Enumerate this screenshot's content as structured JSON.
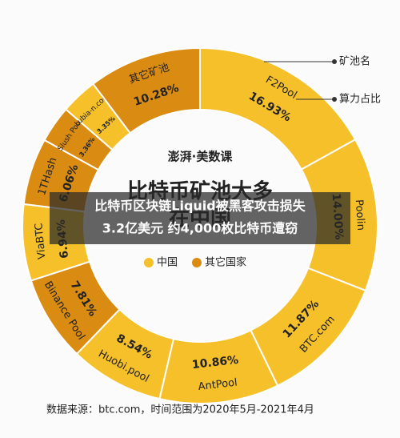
{
  "chart_data": {
    "type": "pie",
    "donut": true,
    "logo": "澎湃·美数课",
    "title": [
      "比特币矿池大多",
      "在中国"
    ],
    "categories": [
      "F2Pool",
      "Poolin",
      "BTC.com",
      "AntPool",
      "Huobi.pool",
      "Binance Pool",
      "ViaBTC",
      "1THash",
      "Slush Pool",
      "Lubia-n.com",
      "其它矿池"
    ],
    "values": [
      16.93,
      14.0,
      11.87,
      10.86,
      8.54,
      7.81,
      6.94,
      6.06,
      3.36,
      3.35,
      10.28
    ],
    "value_labels": [
      "16.93%",
      "14.00%",
      "11.87%",
      "10.86%",
      "8.54%",
      "7.81%",
      "6.94%",
      "6.06%",
      "3.36%",
      "3.35%",
      "10.28%"
    ],
    "colors": [
      "#f5c02a",
      "#f5c02a",
      "#f5c02a",
      "#f5c02a",
      "#f5c02a",
      "#d98b12",
      "#f5c02a",
      "#d98b12",
      "#d98b12",
      "#f5c02a",
      "#d98b12"
    ],
    "legend": [
      {
        "name": "中国",
        "color": "#f5c02a"
      },
      {
        "name": "其它国家",
        "color": "#d98b12"
      }
    ],
    "annotations": [
      "矿池名",
      "算力占比"
    ],
    "banner": [
      "比特币区块链Liquid被黑客攻击损失",
      "3.2亿美元 约4,000枚比特币遭窃"
    ],
    "source": "数据来源：btc.com，时间范围为2020年5月-2021年4月"
  }
}
